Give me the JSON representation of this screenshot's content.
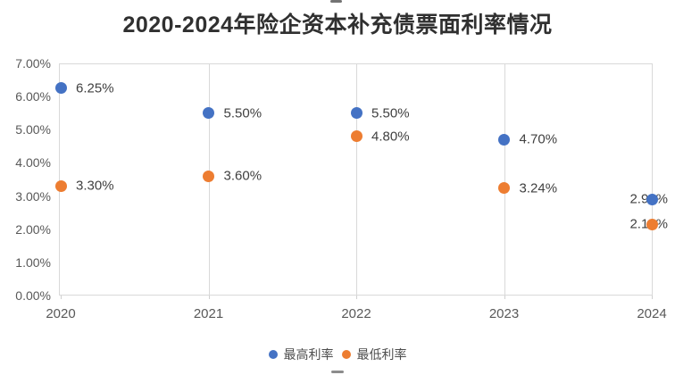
{
  "title": "2020-2024年险企资本补充债票面利率情况",
  "chart_data": {
    "type": "scatter",
    "title": "2020-2024年险企资本补充债票面利率情况",
    "categories": [
      "2020",
      "2021",
      "2022",
      "2023",
      "2024"
    ],
    "series": [
      {
        "name": "最高利率",
        "color": "#4472C4",
        "values": [
          6.25,
          5.5,
          5.5,
          4.7,
          2.9
        ],
        "labels": [
          "6.25%",
          "5.50%",
          "5.50%",
          "4.70%",
          "2.90%"
        ]
      },
      {
        "name": "最低利率",
        "color": "#ED7D31",
        "values": [
          3.3,
          3.6,
          4.8,
          3.24,
          2.15
        ],
        "labels": [
          "3.30%",
          "3.60%",
          "4.80%",
          "3.24%",
          "2.15%"
        ]
      }
    ],
    "xlabel": "",
    "ylabel": "",
    "ylim": [
      0,
      7
    ],
    "ytick_step": 1,
    "ytick_labels": [
      "0.00%",
      "1.00%",
      "2.00%",
      "3.00%",
      "4.00%",
      "5.00%",
      "6.00%",
      "7.00%"
    ],
    "grid": "vertical-only",
    "legend_position": "bottom"
  },
  "legend": {
    "items": [
      {
        "label": "最高利率",
        "color": "#4472C4"
      },
      {
        "label": "最低利率",
        "color": "#ED7D31"
      }
    ]
  }
}
